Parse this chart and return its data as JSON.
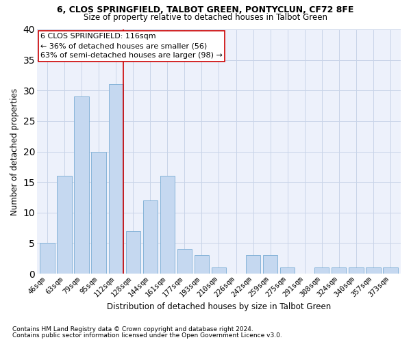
{
  "title1": "6, CLOS SPRINGFIELD, TALBOT GREEN, PONTYCLUN, CF72 8FE",
  "title2": "Size of property relative to detached houses in Talbot Green",
  "xlabel": "Distribution of detached houses by size in Talbot Green",
  "ylabel": "Number of detached properties",
  "categories": [
    "46sqm",
    "63sqm",
    "79sqm",
    "95sqm",
    "112sqm",
    "128sqm",
    "144sqm",
    "161sqm",
    "177sqm",
    "193sqm",
    "210sqm",
    "226sqm",
    "242sqm",
    "259sqm",
    "275sqm",
    "291sqm",
    "308sqm",
    "324sqm",
    "340sqm",
    "357sqm",
    "373sqm"
  ],
  "values": [
    5,
    16,
    29,
    20,
    31,
    7,
    12,
    16,
    4,
    3,
    1,
    0,
    3,
    3,
    1,
    0,
    1,
    1,
    1,
    1,
    1
  ],
  "bar_color": "#c5d8f0",
  "bar_edge_color": "#7aadd4",
  "annotation_title": "6 CLOS SPRINGFIELD: 116sqm",
  "annotation_line1": "← 36% of detached houses are smaller (56)",
  "annotation_line2": "63% of semi-detached houses are larger (98) →",
  "vline_color": "#cc0000",
  "ylim": [
    0,
    40
  ],
  "yticks": [
    0,
    5,
    10,
    15,
    20,
    25,
    30,
    35,
    40
  ],
  "footnote1": "Contains HM Land Registry data © Crown copyright and database right 2024.",
  "footnote2": "Contains public sector information licensed under the Open Government Licence v3.0.",
  "bg_color": "#edf1fb",
  "grid_color": "#c8d4e8"
}
